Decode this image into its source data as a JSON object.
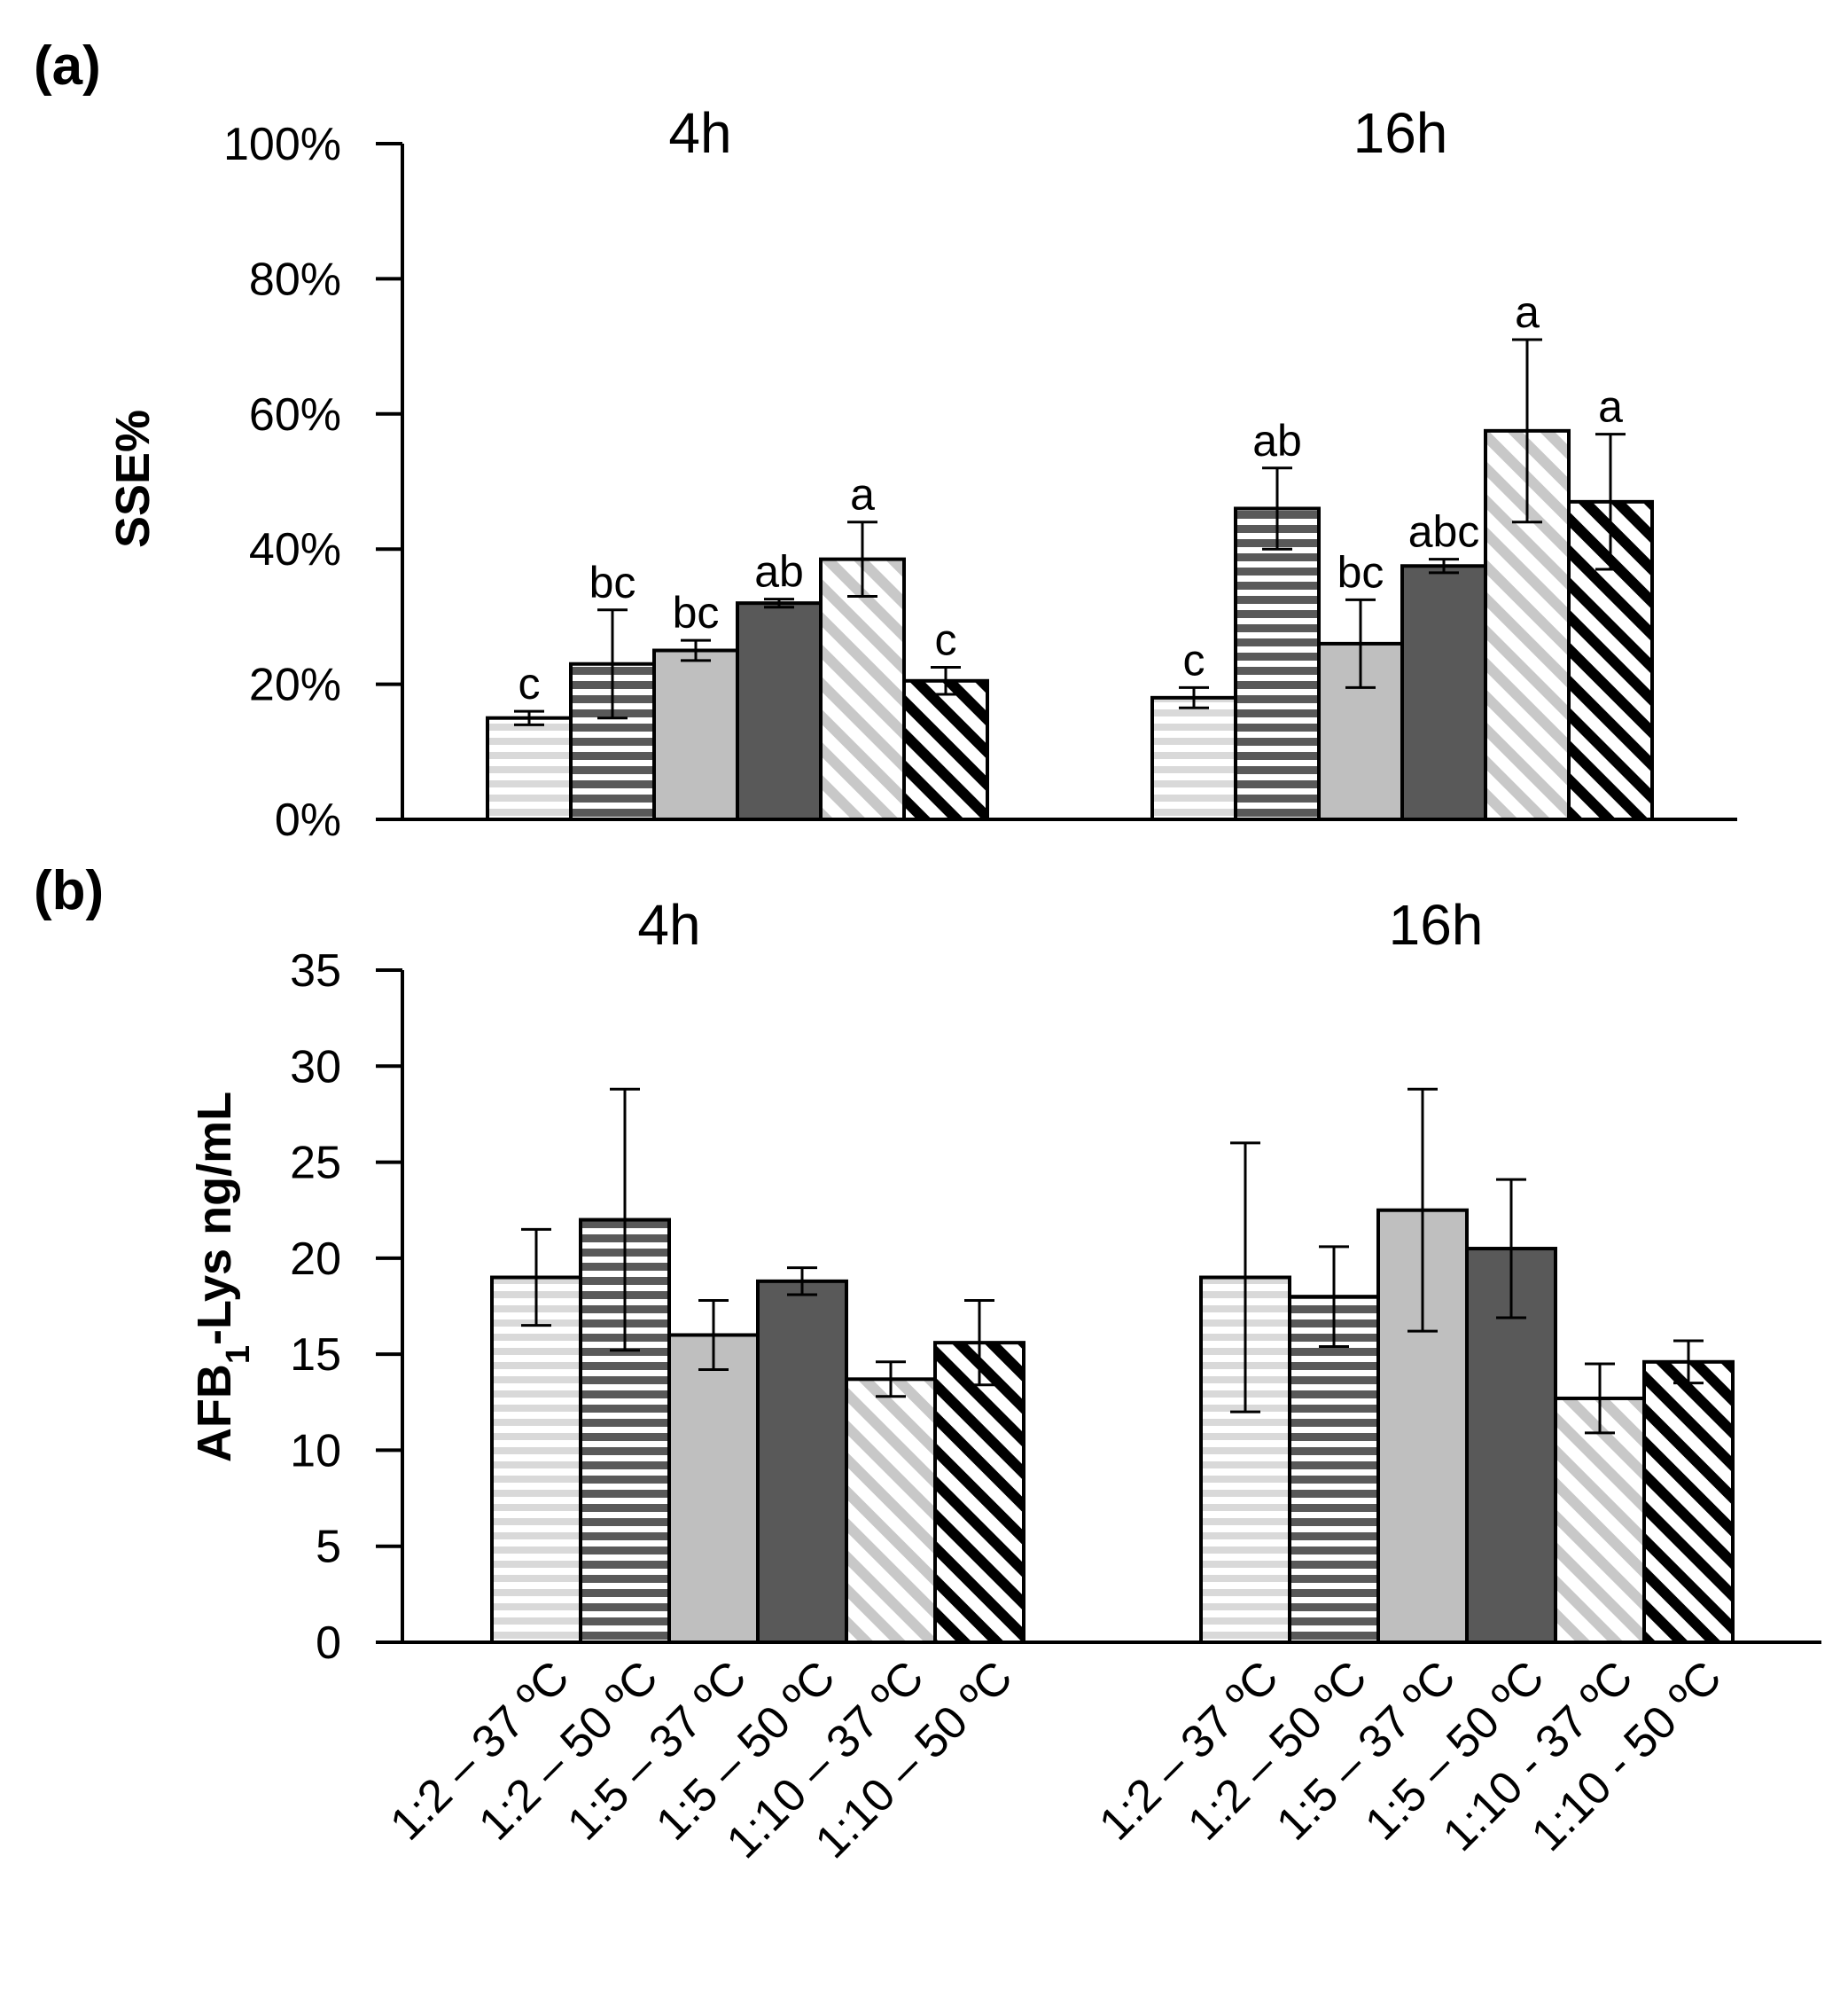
{
  "colors": {
    "light_horizontal_stripes": "#d9d9d9",
    "dark_horizontal_stripes": "#595959",
    "solid_light_gray": "#bfbfbf",
    "solid_dark_gray": "#595959",
    "light_diagonal_stripes": "#c8c8c8",
    "black_diagonal_stripes": "#000000"
  },
  "chart_data": [
    {
      "panel": "(a)",
      "type": "bar",
      "ylabel": "SSE%",
      "ylim": [
        0,
        100
      ],
      "y_ticks": [
        "0%",
        "20%",
        "40%",
        "60%",
        "80%",
        "100%"
      ],
      "grid": false,
      "groups": [
        "4h",
        "16h"
      ],
      "series": [
        {
          "category": "1:2 – 37 ºC",
          "values": [
            15,
            18
          ],
          "errors": [
            1,
            1.5
          ],
          "letters": [
            "c",
            "c"
          ]
        },
        {
          "category": "1:2 – 50 ºC",
          "values": [
            23,
            46
          ],
          "errors": [
            8,
            6
          ],
          "letters": [
            "bc",
            "ab"
          ]
        },
        {
          "category": "1:5 – 37 ºC",
          "values": [
            25,
            26
          ],
          "errors": [
            1.5,
            6.5
          ],
          "letters": [
            "bc",
            "bc"
          ]
        },
        {
          "category": "1:5 – 50 ºC",
          "values": [
            32,
            37.5
          ],
          "errors": [
            0.6,
            1
          ],
          "letters": [
            "ab",
            "abc"
          ]
        },
        {
          "category": "1:10 – 37 ºC",
          "values": [
            38.5,
            57.5
          ],
          "errors": [
            5.5,
            13.5
          ],
          "letters": [
            "a",
            "a"
          ]
        },
        {
          "category": "1:10 – 50 ºC",
          "values": [
            20.5,
            47
          ],
          "errors": [
            2,
            10
          ],
          "letters": [
            "c",
            "a"
          ]
        }
      ]
    },
    {
      "panel": "(b)",
      "type": "bar",
      "ylabel_main": "AFB",
      "ylabel_sub": "1",
      "ylabel_rest": "-Lys ng/mL",
      "ylim": [
        0,
        35
      ],
      "y_ticks": [
        "0",
        "5",
        "10",
        "15",
        "20",
        "25",
        "30",
        "35"
      ],
      "grid": false,
      "groups": [
        "4h",
        "16h"
      ],
      "categories_by_group": [
        [
          "1:2 – 37 ºC",
          "1:2 – 50 ºC",
          "1:5 – 37 ºC",
          "1:5 – 50 ºC",
          "1:10 – 37 ºC",
          "1:10 – 50 ºC"
        ],
        [
          "1:2 – 37 ºC",
          "1:2 – 50 ºC",
          "1:5 – 37 ºC",
          "1:5 – 50 ºC",
          "1:10 - 37 ºC",
          "1:10 - 50 ºC"
        ]
      ],
      "series": [
        {
          "category": "1:2 – 37 ºC",
          "values": [
            19,
            19
          ],
          "errors": [
            2.5,
            7
          ]
        },
        {
          "category": "1:2 – 50 ºC",
          "values": [
            22,
            18
          ],
          "errors": [
            6.8,
            2.6
          ]
        },
        {
          "category": "1:5 – 37 ºC",
          "values": [
            16,
            22.5
          ],
          "errors": [
            1.8,
            6.3
          ]
        },
        {
          "category": "1:5 – 50 ºC",
          "values": [
            18.8,
            20.5
          ],
          "errors": [
            0.7,
            3.6
          ]
        },
        {
          "category": "1:10 – 37 ºC",
          "values": [
            13.7,
            12.7
          ],
          "errors": [
            0.9,
            1.8
          ]
        },
        {
          "category": "1:10 – 50 ºC",
          "values": [
            15.6,
            14.6
          ],
          "errors": [
            2.2,
            1.1
          ]
        }
      ]
    }
  ]
}
